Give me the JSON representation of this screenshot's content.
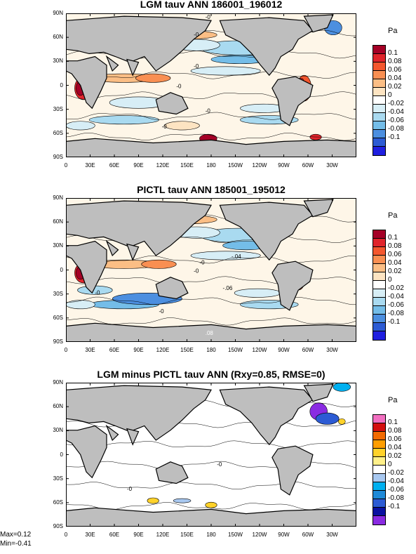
{
  "panels": [
    {
      "title": "LGM tauv ANN 186001_196012",
      "unit": "Pa",
      "colors": [
        "#a50026",
        "#e0242b",
        "#f4572e",
        "#f98f52",
        "#fbbe85",
        "#fde4c2",
        "#ffffff",
        "#d7eef6",
        "#a9daf0",
        "#74bde8",
        "#4c8fe0",
        "#2c5bd4",
        "#1f1fe0"
      ],
      "contour_labels": [
        "-0",
        "-0",
        "-0",
        "-0",
        "-0",
        "-0"
      ]
    },
    {
      "title": "PICTL tauv ANN 185001_195012",
      "unit": "Pa",
      "colors": [
        "#a50026",
        "#e0242b",
        "#f4572e",
        "#f98f52",
        "#fbbe85",
        "#fde4c2",
        "#ffffff",
        "#d7eef6",
        "#a9daf0",
        "#74bde8",
        "#4c8fe0",
        "#2c5bd4",
        "#1f1fe0"
      ],
      "contour_labels": [
        "-.04",
        "-0",
        "-0",
        "-0",
        "-0",
        "-.06"
      ],
      "extra_label": ".08"
    },
    {
      "title": "LGM minus PICTL tauv ANN (Rxy=0.85, RMSE=0)",
      "unit": "Pa",
      "colors": [
        "#f26fc1",
        "#d40f0f",
        "#f26a00",
        "#ff9e00",
        "#ffd22a",
        "#fff08a",
        "#ffffff",
        "#a8c8f0",
        "#00b0f0",
        "#1e8ad8",
        "#2c5bd4",
        "#0a10a0",
        "#8a2be2"
      ],
      "contour_labels": [
        "-0",
        "-0"
      ]
    }
  ],
  "colorbar_labels": [
    "0.1",
    "0.08",
    "0.06",
    "0.04",
    "0.02",
    "0",
    "-0.02",
    "-0.04",
    "-0.06",
    "-0.08",
    "-0.1"
  ],
  "lat_labels": [
    "90N",
    "60N",
    "30N",
    "0",
    "30S",
    "60S",
    "90S"
  ],
  "lon_labels": [
    "0",
    "30E",
    "60E",
    "90E",
    "120E",
    "150E",
    "180",
    "150W",
    "120W",
    "90W",
    "60W",
    "30W"
  ],
  "stats": {
    "max": "Max=0.12",
    "min": "Min=-0.41"
  }
}
